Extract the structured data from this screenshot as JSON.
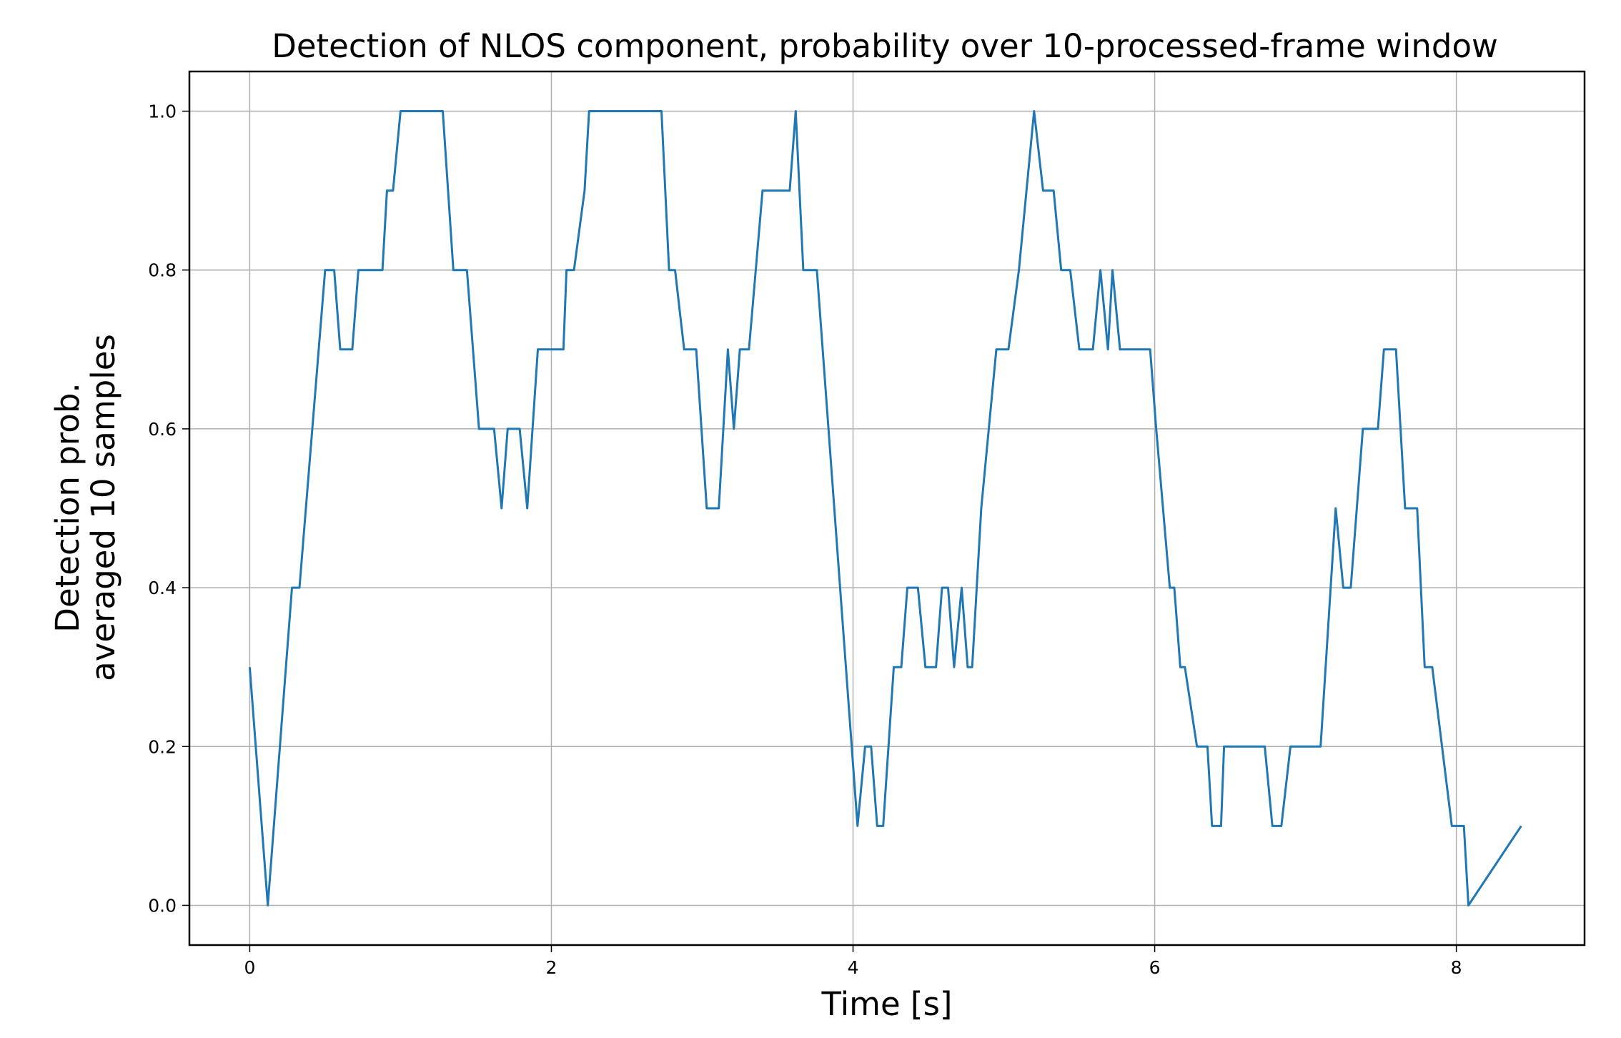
{
  "chart_data": {
    "type": "line",
    "title": "Detection of NLOS component, probability over 10-processed-frame window",
    "xlabel": "Time [s]",
    "ylabel_lines": [
      "Detection prob.",
      "averaged 10 samples"
    ],
    "xlim": [
      -0.4,
      8.85
    ],
    "ylim": [
      -0.05,
      1.05
    ],
    "xticks": [
      0,
      2,
      4,
      6,
      8
    ],
    "xtick_labels": [
      "0",
      "2",
      "4",
      "6",
      "8"
    ],
    "yticks": [
      0.0,
      0.2,
      0.4,
      0.6,
      0.8,
      1.0
    ],
    "ytick_labels": [
      "0.0",
      "0.2",
      "0.4",
      "0.6",
      "0.8",
      "1.0"
    ],
    "grid": true,
    "series": [
      {
        "color": "#1f77b4",
        "x": [
          0.0,
          0.12,
          0.28,
          0.33,
          0.5,
          0.56,
          0.6,
          0.68,
          0.72,
          0.88,
          0.91,
          0.95,
          1.0,
          1.28,
          1.35,
          1.44,
          1.52,
          1.62,
          1.67,
          1.71,
          1.79,
          1.84,
          1.91,
          1.98,
          2.08,
          2.1,
          2.15,
          2.22,
          2.25,
          2.73,
          2.78,
          2.82,
          2.88,
          2.96,
          3.03,
          3.11,
          3.17,
          3.21,
          3.25,
          3.31,
          3.4,
          3.43,
          3.47,
          3.58,
          3.62,
          3.67,
          3.72,
          3.76,
          4.03,
          4.08,
          4.12,
          4.16,
          4.2,
          4.27,
          4.32,
          4.36,
          4.43,
          4.48,
          4.55,
          4.59,
          4.63,
          4.67,
          4.72,
          4.76,
          4.79,
          4.85,
          4.95,
          5.03,
          5.1,
          5.2,
          5.26,
          5.33,
          5.38,
          5.44,
          5.5,
          5.59,
          5.64,
          5.69,
          5.72,
          5.77,
          5.8,
          5.85,
          5.97,
          6.01,
          6.1,
          6.13,
          6.17,
          6.2,
          6.28,
          6.35,
          6.38,
          6.44,
          6.46,
          6.69,
          6.73,
          6.78,
          6.84,
          6.9,
          7.1,
          7.2,
          7.25,
          7.3,
          7.38,
          7.48,
          7.52,
          7.6,
          7.66,
          7.74,
          7.79,
          7.84,
          7.97,
          8.05,
          8.08,
          8.43
        ],
        "y": [
          0.3,
          0.0,
          0.4,
          0.4,
          0.8,
          0.8,
          0.7,
          0.7,
          0.8,
          0.8,
          0.9,
          0.9,
          1.0,
          1.0,
          0.8,
          0.8,
          0.6,
          0.6,
          0.5,
          0.6,
          0.6,
          0.5,
          0.7,
          0.7,
          0.7,
          0.8,
          0.8,
          0.9,
          1.0,
          1.0,
          0.8,
          0.8,
          0.7,
          0.7,
          0.5,
          0.5,
          0.7,
          0.6,
          0.7,
          0.7,
          0.9,
          0.9,
          0.9,
          0.9,
          1.0,
          0.8,
          0.8,
          0.8,
          0.1,
          0.2,
          0.2,
          0.1,
          0.1,
          0.3,
          0.3,
          0.4,
          0.4,
          0.3,
          0.3,
          0.4,
          0.4,
          0.3,
          0.4,
          0.3,
          0.3,
          0.5,
          0.7,
          0.7,
          0.8,
          1.0,
          0.9,
          0.9,
          0.8,
          0.8,
          0.7,
          0.7,
          0.8,
          0.7,
          0.8,
          0.7,
          0.7,
          0.7,
          0.7,
          0.6,
          0.4,
          0.4,
          0.3,
          0.3,
          0.2,
          0.2,
          0.1,
          0.1,
          0.2,
          0.2,
          0.2,
          0.1,
          0.1,
          0.2,
          0.2,
          0.5,
          0.4,
          0.4,
          0.6,
          0.6,
          0.7,
          0.7,
          0.5,
          0.5,
          0.3,
          0.3,
          0.1,
          0.1,
          0.0,
          0.1
        ]
      }
    ]
  }
}
